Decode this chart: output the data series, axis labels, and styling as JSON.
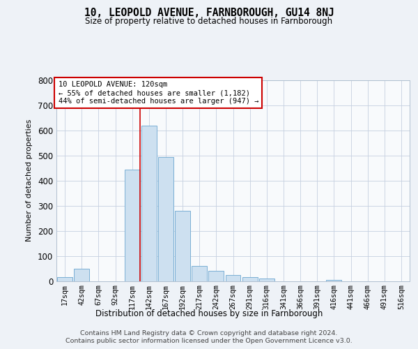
{
  "title": "10, LEOPOLD AVENUE, FARNBOROUGH, GU14 8NJ",
  "subtitle": "Size of property relative to detached houses in Farnborough",
  "xlabel": "Distribution of detached houses by size in Farnborough",
  "ylabel": "Number of detached properties",
  "categories": [
    "17sqm",
    "42sqm",
    "67sqm",
    "92sqm",
    "117sqm",
    "142sqm",
    "167sqm",
    "192sqm",
    "217sqm",
    "242sqm",
    "267sqm",
    "291sqm",
    "316sqm",
    "341sqm",
    "366sqm",
    "391sqm",
    "416sqm",
    "441sqm",
    "466sqm",
    "491sqm",
    "516sqm"
  ],
  "values": [
    15,
    50,
    0,
    0,
    445,
    620,
    495,
    280,
    60,
    40,
    25,
    15,
    10,
    0,
    0,
    0,
    5,
    0,
    0,
    0,
    0
  ],
  "bar_color": "#cde0f0",
  "bar_edge_color": "#7aafd4",
  "annotation_box_text_line1": "10 LEOPOLD AVENUE: 120sqm",
  "annotation_box_text_line2": "← 55% of detached houses are smaller (1,182)",
  "annotation_box_text_line3": "44% of semi-detached houses are larger (947) →",
  "annotation_box_color": "#cc0000",
  "red_line_x": 4.48,
  "ylim": [
    0,
    800
  ],
  "yticks": [
    0,
    100,
    200,
    300,
    400,
    500,
    600,
    700,
    800
  ],
  "footer_line1": "Contains HM Land Registry data © Crown copyright and database right 2024.",
  "footer_line2": "Contains public sector information licensed under the Open Government Licence v3.0.",
  "background_color": "#eef2f7",
  "plot_bg_color": "#f8fafc",
  "grid_color": "#c5cfe0"
}
